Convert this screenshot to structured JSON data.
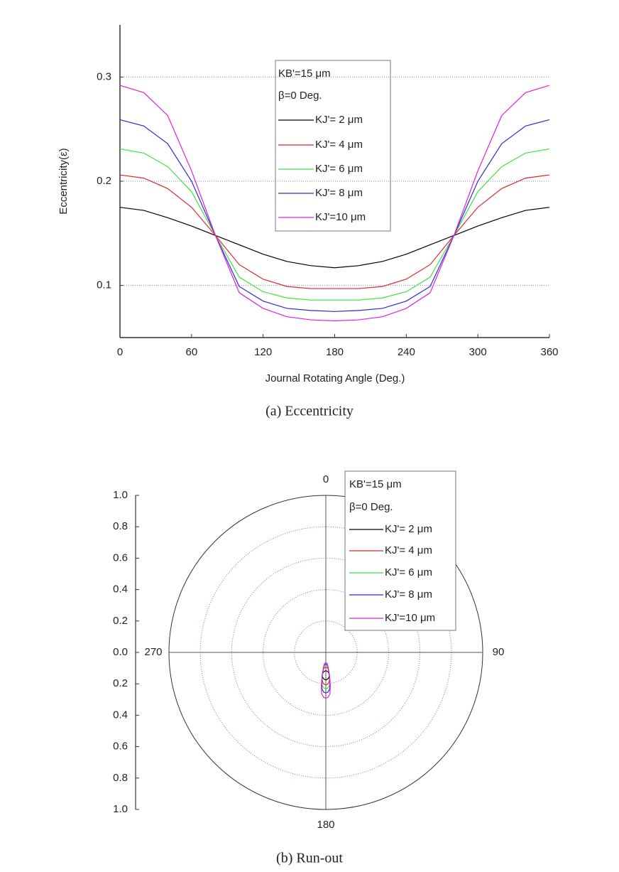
{
  "chart_data": [
    {
      "type": "line",
      "caption": "(a) Eccentricity",
      "xlabel": "Journal Rotating Angle (Deg.)",
      "ylabel": "Eccentricity(ε)",
      "annotations": [
        "KB'=15 μm",
        "β=0 Deg."
      ],
      "x": [
        0,
        20,
        40,
        60,
        80,
        100,
        120,
        140,
        160,
        180,
        200,
        220,
        240,
        260,
        280,
        300,
        320,
        340,
        360
      ],
      "xlim": [
        0,
        360
      ],
      "xticks": [
        0,
        60,
        120,
        180,
        240,
        300,
        360
      ],
      "ylim": [
        0.05,
        0.35
      ],
      "yticks": [
        0.1,
        0.2,
        0.3
      ],
      "grid": true,
      "series": [
        {
          "name": "KJ'= 2 μm",
          "color": "#000000",
          "values": [
            0.175,
            0.172,
            0.165,
            0.157,
            0.148,
            0.139,
            0.13,
            0.123,
            0.119,
            0.117,
            0.119,
            0.123,
            0.13,
            0.139,
            0.148,
            0.157,
            0.165,
            0.172,
            0.175
          ]
        },
        {
          "name": "KJ'= 4 μm",
          "color": "#e0262b",
          "values": [
            0.206,
            0.203,
            0.193,
            0.175,
            0.148,
            0.12,
            0.106,
            0.099,
            0.097,
            0.097,
            0.097,
            0.099,
            0.106,
            0.12,
            0.148,
            0.175,
            0.193,
            0.203,
            0.206
          ]
        },
        {
          "name": "KJ'= 6 μm",
          "color": "#3ee23e",
          "values": [
            0.231,
            0.227,
            0.214,
            0.19,
            0.148,
            0.108,
            0.094,
            0.088,
            0.086,
            0.086,
            0.086,
            0.088,
            0.094,
            0.108,
            0.148,
            0.19,
            0.214,
            0.227,
            0.231
          ]
        },
        {
          "name": "KJ'= 8 μm",
          "color": "#2b2bd0",
          "values": [
            0.259,
            0.253,
            0.236,
            0.2,
            0.148,
            0.099,
            0.085,
            0.078,
            0.076,
            0.075,
            0.076,
            0.078,
            0.085,
            0.099,
            0.148,
            0.2,
            0.236,
            0.253,
            0.259
          ]
        },
        {
          "name": "KJ'=10 μm",
          "color": "#e020e0",
          "values": [
            0.292,
            0.285,
            0.263,
            0.21,
            0.148,
            0.093,
            0.078,
            0.07,
            0.067,
            0.066,
            0.067,
            0.07,
            0.078,
            0.093,
            0.148,
            0.21,
            0.263,
            0.285,
            0.292
          ]
        }
      ]
    },
    {
      "type": "polar",
      "caption": "(b) Run-out",
      "annotations": [
        "KB'=15 μm",
        "β=0 Deg."
      ],
      "angle_ticks": [
        0,
        90,
        180,
        270
      ],
      "ylim": [
        -1,
        1
      ],
      "yticks": [
        {
          "value": 1,
          "label": "1.0"
        },
        0.8,
        0.6,
        0.4,
        0.2,
        {
          "value": 0,
          "label": "0.0"
        },
        {
          "value": -0.2,
          "label": "0.2"
        },
        {
          "value": -0.4,
          "label": "0.4"
        },
        {
          "value": -0.6,
          "label": "0.6"
        },
        {
          "value": -0.8,
          "label": "0.8"
        },
        {
          "value": -1,
          "label": "1.0"
        }
      ],
      "theta": [
        180,
        183.1,
        185.8,
        187.8,
        188.9,
        188.9,
        187.8,
        185.8,
        183.1,
        180,
        176.9,
        174.2,
        172.2,
        171.1,
        171.1,
        172.2,
        174.2,
        176.9,
        180
      ],
      "series": [
        {
          "name": "KJ'= 2 μm",
          "color": "#000000",
          "values": [
            0.175,
            0.172,
            0.165,
            0.157,
            0.148,
            0.139,
            0.13,
            0.123,
            0.119,
            0.117,
            0.119,
            0.123,
            0.13,
            0.139,
            0.148,
            0.157,
            0.165,
            0.172,
            0.175
          ]
        },
        {
          "name": "KJ'= 4 μm",
          "color": "#e0262b",
          "values": [
            0.206,
            0.203,
            0.193,
            0.175,
            0.148,
            0.12,
            0.106,
            0.099,
            0.097,
            0.097,
            0.097,
            0.099,
            0.106,
            0.12,
            0.148,
            0.175,
            0.193,
            0.203,
            0.206
          ]
        },
        {
          "name": "KJ'= 6 μm",
          "color": "#3ee23e",
          "values": [
            0.231,
            0.227,
            0.214,
            0.19,
            0.148,
            0.108,
            0.094,
            0.088,
            0.086,
            0.086,
            0.086,
            0.088,
            0.094,
            0.108,
            0.148,
            0.19,
            0.214,
            0.227,
            0.231
          ]
        },
        {
          "name": "KJ'= 8 μm",
          "color": "#2b2bd0",
          "values": [
            0.259,
            0.253,
            0.236,
            0.2,
            0.148,
            0.099,
            0.085,
            0.078,
            0.076,
            0.075,
            0.076,
            0.078,
            0.085,
            0.099,
            0.148,
            0.2,
            0.236,
            0.253,
            0.259
          ]
        },
        {
          "name": "KJ'=10 μm",
          "color": "#e020e0",
          "values": [
            0.292,
            0.285,
            0.263,
            0.21,
            0.148,
            0.093,
            0.078,
            0.07,
            0.067,
            0.066,
            0.067,
            0.07,
            0.078,
            0.093,
            0.148,
            0.21,
            0.263,
            0.285,
            0.292
          ]
        }
      ]
    }
  ]
}
